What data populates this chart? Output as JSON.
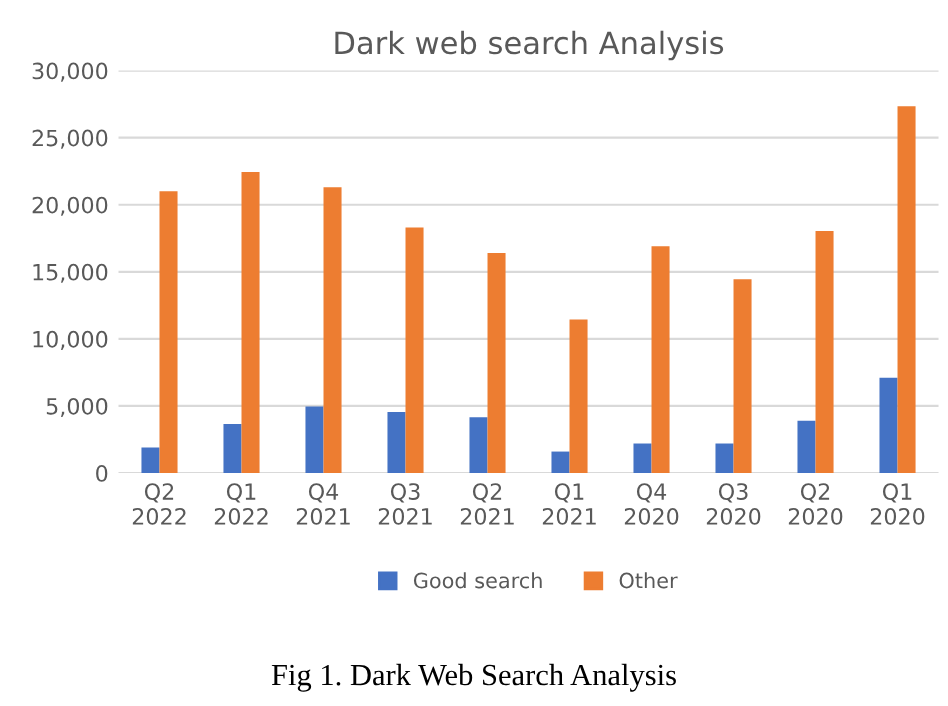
{
  "chart_data": {
    "type": "bar",
    "title": "Dark web search Analysis",
    "categories": [
      "Q2\n2022",
      "Q1\n2022",
      "Q4\n2021",
      "Q3\n2021",
      "Q2\n2021",
      "Q1\n2021",
      "Q4\n2020",
      "Q3\n2020",
      "Q2\n2020",
      "Q1\n2020"
    ],
    "series": [
      {
        "name": "Good search",
        "color": "#4472c4",
        "values": [
          1900,
          3650,
          4950,
          4550,
          4150,
          1600,
          2200,
          2200,
          3900,
          7100
        ]
      },
      {
        "name": "Other",
        "color": "#ed7d31",
        "values": [
          21000,
          22450,
          21300,
          18300,
          16400,
          11450,
          16900,
          14450,
          18050,
          27350
        ]
      }
    ],
    "ylim": [
      0,
      30000
    ],
    "yticks": [
      {
        "value": 0,
        "label": "0"
      },
      {
        "value": 5000,
        "label": "5,000"
      },
      {
        "value": 10000,
        "label": "10,000"
      },
      {
        "value": 15000,
        "label": "15,000"
      },
      {
        "value": 20000,
        "label": "20,000"
      },
      {
        "value": 25000,
        "label": "25,000"
      },
      {
        "value": 30000,
        "label": "30,000"
      }
    ],
    "grid": "y",
    "legend": "bottom",
    "annotations": [
      "Fig 1. Dark Web Search Analysis"
    ]
  }
}
